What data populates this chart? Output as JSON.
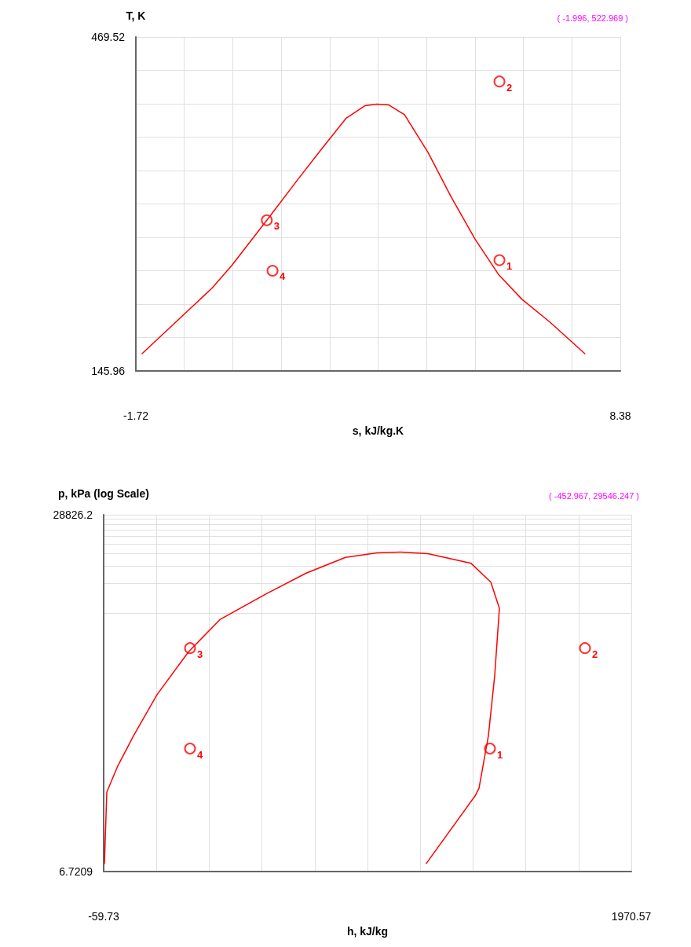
{
  "chart_data": [
    {
      "type": "line",
      "xlabel": "s, kJ/kg.K",
      "ylabel": "T, K",
      "xlim": [
        -1.72,
        8.38
      ],
      "xticks": [
        -1.72,
        {
          "value": -0.71,
          "label": null
        },
        {
          "value": 0.3,
          "label": null
        },
        {
          "value": 1.31,
          "label": null
        },
        {
          "value": 2.32,
          "label": null
        },
        {
          "value": 3.33,
          "label": null
        },
        {
          "value": 4.34,
          "label": null
        },
        {
          "value": 5.35,
          "label": null
        },
        {
          "value": 6.36,
          "label": null
        },
        {
          "value": 7.37,
          "label": null
        },
        8.38
      ],
      "ylim": [
        145.96,
        469.52
      ],
      "yticks": [
        145.96,
        {
          "value": 178.32,
          "label": null
        },
        {
          "value": 210.67,
          "label": null
        },
        {
          "value": 243.03,
          "label": null
        },
        {
          "value": 275.38,
          "label": null
        },
        {
          "value": 307.74,
          "label": null
        },
        {
          "value": 340.1,
          "label": null
        },
        {
          "value": 372.45,
          "label": null
        },
        {
          "value": 404.81,
          "label": null
        },
        {
          "value": 437.16,
          "label": null
        },
        469.52
      ],
      "grid": true,
      "series": [
        {
          "type": "line",
          "color": "#ff0000",
          "marker": "none",
          "x": [
            -1.59,
            -0.13,
            0.28,
            1.01,
            1.67,
            2.16,
            2.66,
            3.06,
            3.3,
            3.55,
            3.88,
            4.37,
            4.86,
            5.35,
            5.84,
            6.33,
            6.91,
            7.64
          ],
          "values": [
            162.8,
            226.3,
            248.2,
            292,
            332.2,
            361.4,
            390.6,
            403,
            404.5,
            403.7,
            394.2,
            357.7,
            314,
            273.8,
            239.5,
            215.4,
            193.4,
            162.8
          ]
        },
        {
          "type": "scatter",
          "color": "#ff0000",
          "marker": "circle",
          "x": [
            5.86,
            5.86,
            1.01,
            1.13
          ],
          "values": [
            253.3,
            426.4,
            292,
            243.1
          ]
        }
      ],
      "annotations": [
        {
          "text": "1",
          "x": 5.86,
          "y": 253.3
        },
        {
          "text": "2",
          "x": 5.86,
          "y": 426.4
        },
        {
          "text": "3",
          "x": 1.01,
          "y": 292
        },
        {
          "text": "4",
          "x": 1.13,
          "y": 243.1
        },
        "( -1.996, 522.969 )"
      ]
    },
    {
      "type": "line",
      "xlabel": "h, kJ/kg",
      "ylabel": "p, kPa (log Scale)",
      "log": "y",
      "xlim": [
        -59.73,
        1970.57
      ],
      "xticks": [
        -59.73,
        {
          "value": 143.3,
          "label": null
        },
        {
          "value": 346.33,
          "label": null
        },
        {
          "value": 549.36,
          "label": null
        },
        {
          "value": 752.39,
          "label": null
        },
        {
          "value": 955.42,
          "label": null
        },
        {
          "value": 1158.45,
          "label": null
        },
        {
          "value": 1361.48,
          "label": null
        },
        {
          "value": 1564.51,
          "label": null
        },
        {
          "value": 1767.54,
          "label": null
        },
        1970.57
      ],
      "ylim": [
        6.7209,
        28826.2
      ],
      "yticks": [
        6.7209,
        {
          "value": 2882.62,
          "label": null
        },
        {
          "value": 5765.24,
          "label": null
        },
        {
          "value": 8647.86,
          "label": null
        },
        {
          "value": 11530.48,
          "label": null
        },
        {
          "value": 14413.1,
          "label": null
        },
        {
          "value": 17295.72,
          "label": null
        },
        {
          "value": 20178.34,
          "label": null
        },
        {
          "value": 23060.96,
          "label": null
        },
        {
          "value": 25943.58,
          "label": null
        },
        28826.2
      ],
      "grid": true,
      "series": [
        {
          "type": "line",
          "color": "#ff0000",
          "marker": "none",
          "x": [
            -56.7,
            -47.6,
            -5.3,
            55,
            145.7,
            266.6,
            387.4,
            568.7,
            719.8,
            870.8,
            991.6,
            1082.3,
            1188,
            1354,
            1430,
            1463,
            1444.8,
            1420.6,
            1384.4,
            1369.2,
            1181.9
          ],
          "values": [
            8.15,
            43.3,
            80.1,
            161.8,
            425.6,
            1159,
            2467,
            4566,
            7345,
            10620,
            11800,
            12020,
            11590,
            9226,
            5943,
            3213,
            660,
            161.8,
            47.3,
            39.6,
            8.15
          ]
        },
        {
          "type": "scatter",
          "color": "#ff0000",
          "marker": "circle",
          "x": [
            1426.6,
            1792.2,
            272.6,
            272.6
          ],
          "values": [
            120,
            1266,
            1266,
            120
          ]
        }
      ],
      "annotations": [
        {
          "text": "1",
          "x": 1426.6,
          "y": 120
        },
        {
          "text": "2",
          "x": 1792.2,
          "y": 1266
        },
        {
          "text": "3",
          "x": 272.6,
          "y": 1266
        },
        {
          "text": "4",
          "x": 272.6,
          "y": 120
        },
        "( -452.967, 29546.247 )"
      ]
    }
  ]
}
